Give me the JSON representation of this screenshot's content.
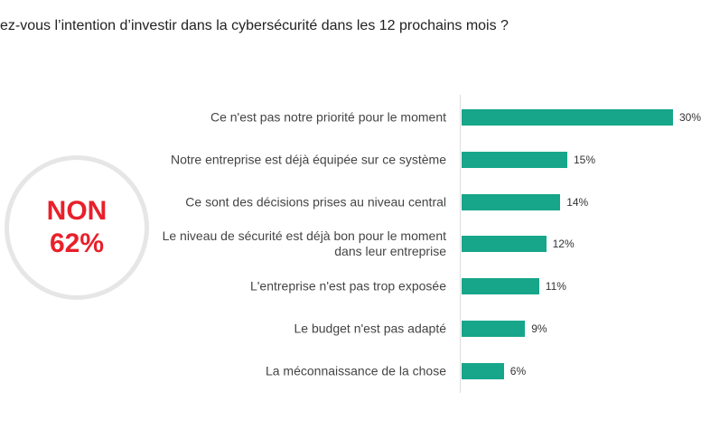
{
  "chart_data": {
    "type": "hbar",
    "title": "ez-vous l’intention d’investir dans la cybersécurité dans les 12 prochains mois ?",
    "callout": [
      "NON",
      "62%"
    ],
    "categories": [
      "Ce n'est pas notre priorité pour le moment",
      "Notre entreprise est déjà équipée sur ce système",
      "Ce sont des décisions prises au niveau central",
      "Le niveau de sécurité est déjà bon pour le moment dans leur entreprise",
      "L'entreprise n'est pas trop exposée",
      "Le budget n'est pas adapté",
      "La méconnaissance de la chose"
    ],
    "values": [
      30,
      15,
      14,
      12,
      11,
      9,
      6
    ],
    "value_labels": [
      "30%",
      "15%",
      "14%",
      "12%",
      "11%",
      "9%",
      "6%"
    ],
    "color": "#17a68a"
  }
}
